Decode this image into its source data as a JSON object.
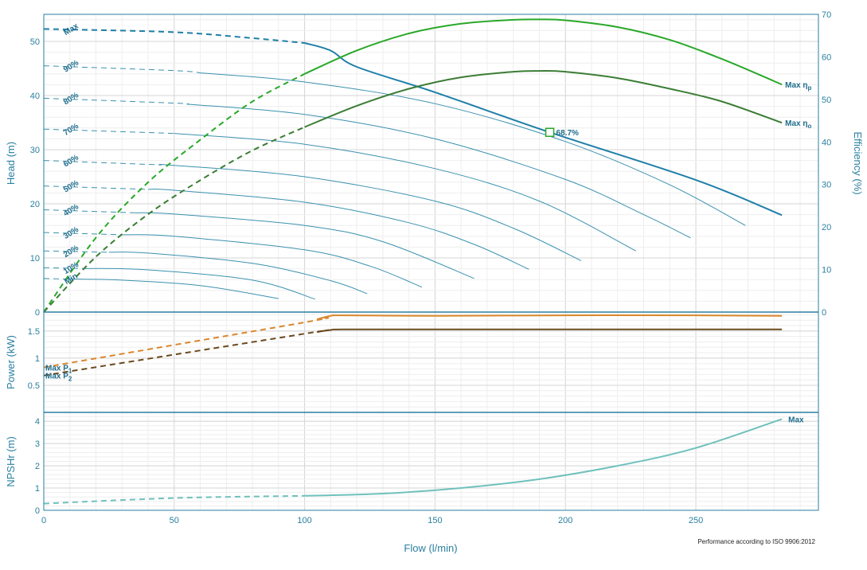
{
  "colors": {
    "axis": "#2a7fa0",
    "head_max": "#1f7fa8",
    "head_speed": "#3a91ae",
    "eta_p": "#29a829",
    "eta_o": "#3b7d35",
    "p1": "#d9872b",
    "p2": "#6b4a1e",
    "npsh": "#6fc1bd",
    "bep_marker": "#29a829"
  },
  "chart_data": [
    {
      "type": "line",
      "panel": "head-efficiency",
      "xlabel": "Flow (l/min)",
      "ylabel": "Head (m)",
      "y2label": "Efficiency (%)",
      "xlim": [
        0,
        297
      ],
      "ylim": [
        0,
        55
      ],
      "y2lim": [
        0,
        70
      ],
      "x_ticks": [
        "0",
        "50",
        "100",
        "150",
        "200",
        "250"
      ],
      "y_ticks": [
        "0",
        "10",
        "20",
        "30",
        "40",
        "50"
      ],
      "y2_ticks": [
        "0",
        "10",
        "20",
        "30",
        "40",
        "50",
        "60",
        "70"
      ],
      "bep": {
        "x": 194,
        "y": 33.2,
        "label": "68.7%"
      },
      "head_curves": [
        {
          "name": "Max",
          "x": [
            0,
            50,
            80,
            100,
            110,
            120,
            150,
            194,
            250,
            283
          ],
          "y": [
            52.3,
            51.7,
            50.6,
            49.7,
            48.3,
            45.3,
            40.6,
            33.2,
            24.4,
            17.9
          ],
          "dashed_until": 100
        },
        {
          "name": "90%",
          "x": [
            0,
            50,
            100,
            150,
            200,
            240,
            269
          ],
          "y": [
            45.5,
            44.6,
            42.5,
            38.5,
            31.5,
            23.5,
            16.0
          ],
          "dashed_until": 60
        },
        {
          "name": "80%",
          "x": [
            0,
            50,
            100,
            150,
            200,
            230,
            248
          ],
          "y": [
            39.5,
            38.6,
            36.5,
            32.0,
            24.5,
            18.0,
            13.7
          ],
          "dashed_until": 55
        },
        {
          "name": "70%",
          "x": [
            0,
            50,
            100,
            150,
            190,
            227
          ],
          "y": [
            33.8,
            33.0,
            31.0,
            26.5,
            20.5,
            11.3
          ],
          "dashed_until": 50
        },
        {
          "name": "60%",
          "x": [
            0,
            50,
            100,
            150,
            180,
            206
          ],
          "y": [
            28.0,
            27.1,
            25.0,
            20.5,
            15.5,
            9.5
          ],
          "dashed_until": 45
        },
        {
          "name": "50%",
          "x": [
            0,
            50,
            100,
            140,
            165,
            186
          ],
          "y": [
            23.3,
            22.5,
            20.3,
            16.5,
            12.5,
            7.9
          ],
          "dashed_until": 40
        },
        {
          "name": "40%",
          "x": [
            0,
            50,
            100,
            130,
            165
          ],
          "y": [
            18.9,
            18.1,
            16.0,
            13.0,
            6.2
          ],
          "dashed_until": 35
        },
        {
          "name": "30%",
          "x": [
            0,
            50,
            100,
            125,
            145
          ],
          "y": [
            14.7,
            14.0,
            11.5,
            8.5,
            4.6
          ],
          "dashed_until": 30
        },
        {
          "name": "20%",
          "x": [
            0,
            40,
            80,
            110,
            124
          ],
          "y": [
            11.3,
            10.9,
            9.0,
            5.8,
            3.4
          ],
          "dashed_until": 25
        },
        {
          "name": "10%",
          "x": [
            0,
            40,
            80,
            104
          ],
          "y": [
            8.2,
            7.8,
            5.9,
            2.4
          ],
          "dashed_until": 15
        },
        {
          "name": "Min",
          "x": [
            0,
            30,
            60,
            90
          ],
          "y": [
            6.2,
            5.9,
            4.9,
            2.5
          ],
          "dashed_until": 10
        }
      ],
      "efficiency_curves": [
        {
          "name": "Max ηp",
          "label_main": "Max η",
          "label_sub": "p",
          "x": [
            0,
            20,
            40,
            60,
            80,
            100,
            120,
            140,
            160,
            180,
            190,
            200,
            220,
            240,
            260,
            283
          ],
          "y": [
            0,
            17.5,
            30.5,
            40.5,
            49.5,
            56.0,
            61.5,
            65.5,
            67.8,
            68.7,
            68.8,
            68.6,
            67.0,
            64.0,
            59.5,
            53.5
          ],
          "dashed_until": 100
        },
        {
          "name": "Max ηo",
          "label_main": "Max η",
          "label_sub": "o",
          "x": [
            0,
            20,
            40,
            60,
            80,
            100,
            120,
            140,
            160,
            180,
            190,
            200,
            220,
            240,
            260,
            283
          ],
          "y": [
            0,
            13.0,
            23.0,
            31.0,
            38.0,
            43.5,
            48.5,
            52.5,
            55.2,
            56.5,
            56.7,
            56.5,
            55.0,
            52.5,
            49.5,
            44.5
          ],
          "dashed_until": 100
        }
      ]
    },
    {
      "type": "line",
      "panel": "power",
      "ylabel": "Power (kW)",
      "ylim": [
        0,
        1.85
      ],
      "y_ticks": [
        "0.5",
        "1",
        "1.5"
      ],
      "series": [
        {
          "name": "Max P1",
          "label_main": "Max  P",
          "label_sub": "1",
          "x": [
            0,
            100,
            110,
            115,
            150,
            200,
            250,
            283
          ],
          "y": [
            0.83,
            1.66,
            1.78,
            1.79,
            1.78,
            1.79,
            1.79,
            1.78
          ],
          "dashed_until": 105
        },
        {
          "name": "Max P2",
          "label_main": "Max  P",
          "label_sub": "2",
          "x": [
            0,
            100,
            110,
            115,
            150,
            200,
            250,
            283
          ],
          "y": [
            0.68,
            1.45,
            1.52,
            1.53,
            1.53,
            1.53,
            1.53,
            1.53
          ],
          "dashed_until": 105
        }
      ]
    },
    {
      "type": "line",
      "panel": "npsh",
      "ylabel": "NPSHr (m)",
      "ylim": [
        0,
        4.4
      ],
      "y_ticks": [
        "0",
        "1",
        "2",
        "3",
        "4"
      ],
      "series": [
        {
          "name": "Max",
          "x": [
            0,
            50,
            100,
            130,
            160,
            190,
            220,
            250,
            283
          ],
          "y": [
            0.3,
            0.55,
            0.65,
            0.75,
            1.0,
            1.4,
            2.0,
            2.8,
            4.1
          ],
          "dashed_until": 100
        }
      ]
    }
  ],
  "footnote": "Performance according to ISO 9906:2012"
}
